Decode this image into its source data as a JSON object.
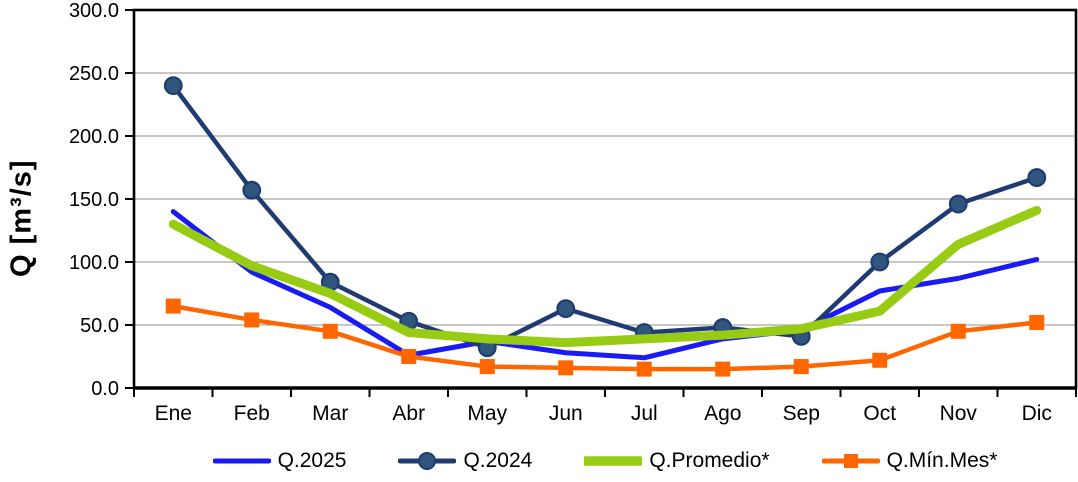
{
  "chart_data": {
    "type": "line",
    "title": "",
    "xlabel": "",
    "ylabel": "Q [m³/s]",
    "ylim": [
      0,
      300
    ],
    "ytick_step": 50,
    "ytick_decimals": 1,
    "grid": true,
    "legend_position": "bottom",
    "axis_color": "#000000",
    "grid_color": "#A6A6A6",
    "categories": [
      "Ene",
      "Feb",
      "Mar",
      "Abr",
      "May",
      "Jun",
      "Jul",
      "Ago",
      "Sep",
      "Oct",
      "Nov",
      "Dic"
    ],
    "series": [
      {
        "name": "Q.2025",
        "color": "#1A1AF2",
        "marker": "none",
        "values": [
          140,
          92,
          64,
          26,
          37,
          28,
          24,
          39,
          46,
          77,
          87,
          102
        ]
      },
      {
        "name": "Q.2024",
        "color": "#203A72",
        "marker": "circle",
        "marker_fill": "#31567D",
        "values": [
          240,
          157,
          84,
          53,
          32,
          63,
          44,
          48,
          41,
          100,
          146,
          167
        ]
      },
      {
        "name": "Q.Promedio*",
        "color": "#98CB13",
        "marker": "none",
        "values": [
          130,
          97,
          75,
          44,
          39,
          36,
          39,
          42,
          47,
          61,
          114,
          141
        ]
      },
      {
        "name": "Q.Mín.Mes*",
        "color": "#FF6600",
        "marker": "square",
        "values": [
          65,
          54,
          45,
          25,
          17,
          16,
          15,
          15,
          17,
          22,
          45,
          52
        ]
      }
    ]
  }
}
